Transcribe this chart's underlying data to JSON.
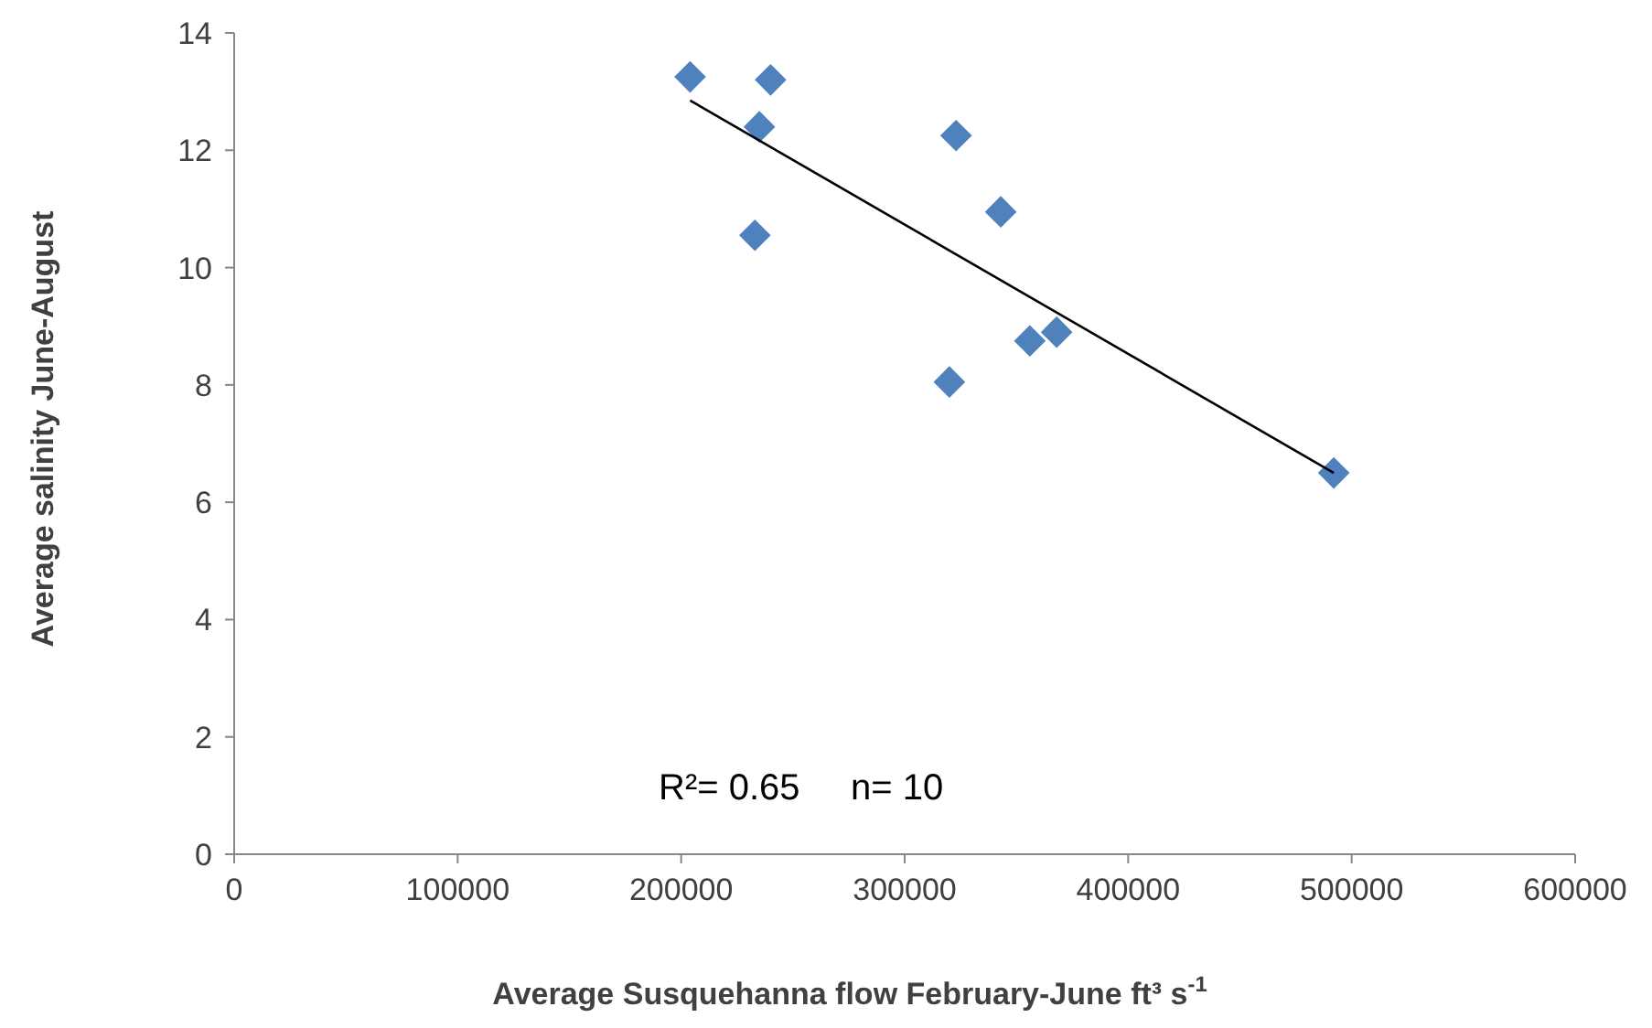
{
  "chart_data": {
    "type": "scatter",
    "xlabel": "Average Susquehanna flow February-June ft³ s$^{-1}$",
    "ylabel": "Average salinity June-August",
    "annotations": [
      "R²= 0.65     n= 10"
    ],
    "xlim": [
      0,
      600000
    ],
    "xticks": [
      0,
      100000,
      200000,
      300000,
      400000,
      500000,
      600000
    ],
    "ylim": [
      0,
      14
    ],
    "yticks": [
      0,
      2,
      4,
      6,
      8,
      10,
      12,
      14
    ],
    "grid": false,
    "marker": "diamond",
    "series": [
      {
        "color": "#4f81bd",
        "x": [
          204000,
          240000,
          235000,
          233000,
          323000,
          343000,
          320000,
          356000,
          368000,
          492000
        ],
        "values": [
          13.25,
          13.2,
          12.4,
          10.55,
          12.25,
          10.95,
          8.05,
          8.75,
          8.9,
          6.5
        ]
      },
      {
        "type": "line",
        "color": "#000000",
        "x": [
          204000,
          492000
        ],
        "values": [
          12.85,
          6.5
        ],
        "marker": "none",
        "line_style": "solid"
      }
    ]
  }
}
